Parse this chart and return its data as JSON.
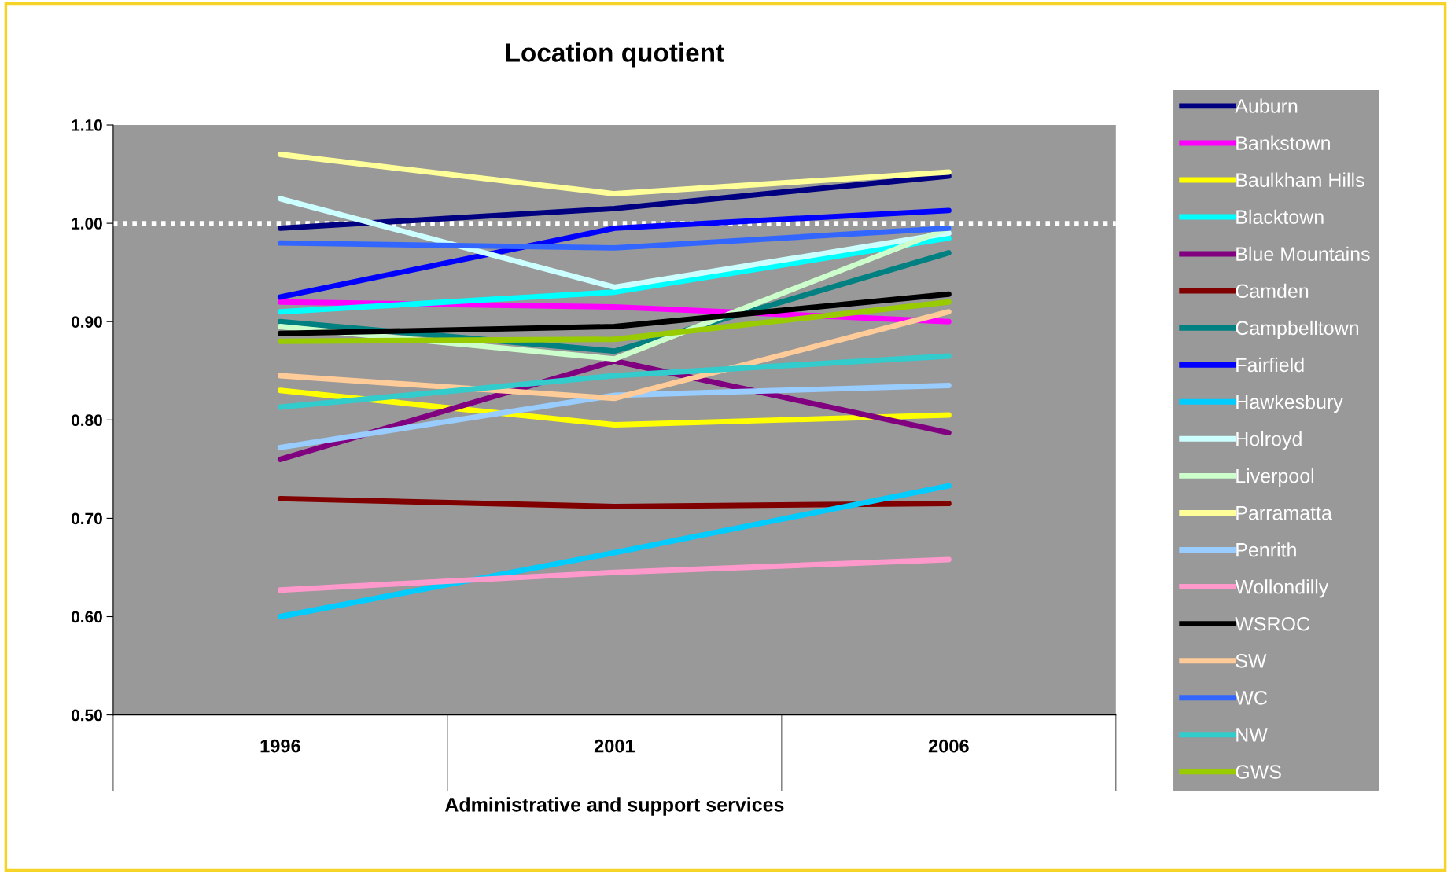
{
  "chart_data": {
    "type": "line",
    "title": "Location quotient",
    "xlabel": "Administrative and support services",
    "categories": [
      "1996",
      "2001",
      "2006"
    ],
    "ylim": [
      0.5,
      1.1
    ],
    "yticks": [
      {
        "value": 0.5,
        "label": "0.50"
      },
      {
        "value": 0.6,
        "label": "0.60"
      },
      {
        "value": 0.7,
        "label": "0.70"
      },
      {
        "value": 0.8,
        "label": "0.80"
      },
      {
        "value": 0.9,
        "label": "0.90"
      },
      {
        "value": 1.0,
        "label": "1.00"
      },
      {
        "value": 1.1,
        "label": "1.10"
      }
    ],
    "grid": false,
    "legend": "right",
    "marker": "none",
    "line_style": "solid",
    "ref_lines": [
      {
        "axis": "y",
        "value": 1.0,
        "color": "#ffffff",
        "line_style": "dotted"
      }
    ],
    "series": [
      {
        "name": "Auburn",
        "color": "#000080",
        "values": [
          0.995,
          1.015,
          1.048
        ]
      },
      {
        "name": "Bankstown",
        "color": "#ff00ff",
        "values": [
          0.92,
          0.915,
          0.9
        ]
      },
      {
        "name": "Baulkham Hills",
        "color": "#ffff00",
        "values": [
          0.83,
          0.795,
          0.805
        ]
      },
      {
        "name": "Blacktown",
        "color": "#00ffff",
        "values": [
          0.91,
          0.93,
          0.985
        ]
      },
      {
        "name": "Blue Mountains",
        "color": "#800080",
        "values": [
          0.76,
          0.86,
          0.787
        ]
      },
      {
        "name": "Camden",
        "color": "#800000",
        "values": [
          0.72,
          0.712,
          0.715
        ]
      },
      {
        "name": "Campbelltown",
        "color": "#008080",
        "values": [
          0.9,
          0.87,
          0.97
        ]
      },
      {
        "name": "Fairfield",
        "color": "#0000ff",
        "values": [
          0.925,
          0.995,
          1.013
        ]
      },
      {
        "name": "Hawkesbury",
        "color": "#00ccff",
        "values": [
          0.6,
          0.665,
          0.733
        ]
      },
      {
        "name": "Holroyd",
        "color": "#ccffff",
        "values": [
          1.025,
          0.935,
          0.99
        ]
      },
      {
        "name": "Liverpool",
        "color": "#ccffcc",
        "values": [
          0.895,
          0.862,
          0.995
        ]
      },
      {
        "name": "Parramatta",
        "color": "#ffff99",
        "values": [
          1.07,
          1.03,
          1.052
        ]
      },
      {
        "name": "Penrith",
        "color": "#99ccff",
        "values": [
          0.772,
          0.825,
          0.835
        ]
      },
      {
        "name": "Wollondilly",
        "color": "#ff99cc",
        "values": [
          0.627,
          0.645,
          0.658
        ]
      },
      {
        "name": "WSROC",
        "color": "#000000",
        "values": [
          0.888,
          0.895,
          0.928
        ]
      },
      {
        "name": "SW",
        "color": "#ffcc99",
        "values": [
          0.845,
          0.822,
          0.91
        ]
      },
      {
        "name": "WC",
        "color": "#3366ff",
        "values": [
          0.98,
          0.975,
          0.995
        ]
      },
      {
        "name": "NW",
        "color": "#33cccc",
        "values": [
          0.813,
          0.845,
          0.865
        ]
      },
      {
        "name": "GWS",
        "color": "#99cc00",
        "values": [
          0.88,
          0.882,
          0.92
        ]
      }
    ]
  }
}
